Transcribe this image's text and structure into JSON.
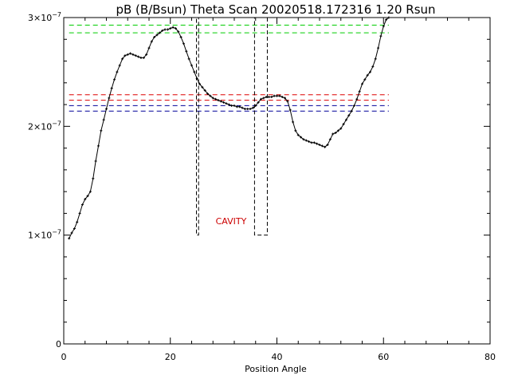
{
  "chart_data": {
    "type": "scatter",
    "title": "pB (B/Bsun) Theta Scan 20020518.172316 1.20 Rsun",
    "xlabel": "Position Angle",
    "ylabel": "",
    "xlim": [
      0,
      80
    ],
    "ylim": [
      0,
      3e-07
    ],
    "grid": false,
    "x_ticks": [
      {
        "value": 0,
        "label": "0"
      },
      {
        "value": 20,
        "label": "20"
      },
      {
        "value": 40,
        "label": "40"
      },
      {
        "value": 60,
        "label": "60"
      },
      {
        "value": 80,
        "label": "80"
      }
    ],
    "y_ticks": [
      {
        "value": 0,
        "label": "0",
        "exp": ""
      },
      {
        "value": 1e-07,
        "label": "1×10",
        "exp": "−7"
      },
      {
        "value": 2e-07,
        "label": "2×10",
        "exp": "−7"
      },
      {
        "value": 3e-07,
        "label": "3×10",
        "exp": "−7"
      }
    ],
    "series": [
      {
        "style": "points-with-line",
        "color": "#000000",
        "x": [
          1.0,
          1.5,
          2.0,
          2.5,
          3.0,
          3.5,
          4.0,
          4.5,
          5.0,
          5.5,
          6.0,
          6.5,
          7.0,
          7.5,
          8.0,
          8.5,
          9.0,
          9.5,
          10.0,
          10.5,
          11.0,
          11.5,
          12.0,
          12.5,
          13.0,
          13.5,
          14.0,
          14.5,
          15.0,
          15.5,
          16.0,
          16.5,
          17.0,
          17.5,
          18.0,
          18.5,
          19.0,
          19.5,
          20.0,
          20.5,
          21.0,
          21.5,
          22.0,
          22.5,
          23.0,
          23.5,
          24.0,
          24.5,
          25.0,
          25.5,
          26.0,
          26.5,
          27.0,
          27.5,
          28.0,
          28.5,
          29.0,
          29.5,
          30.0,
          30.5,
          31.0,
          31.5,
          32.0,
          32.5,
          33.0,
          33.5,
          34.0,
          34.5,
          35.0,
          35.5,
          36.0,
          36.5,
          37.0,
          37.5,
          38.0,
          38.5,
          39.0,
          39.5,
          40.0,
          40.5,
          41.0,
          41.5,
          42.0,
          42.5,
          43.0,
          43.5,
          44.0,
          44.5,
          45.0,
          45.5,
          46.0,
          46.5,
          47.0,
          47.5,
          48.0,
          48.5,
          49.0,
          49.5,
          50.0,
          50.5,
          51.0,
          51.5,
          52.0,
          52.5,
          53.0,
          53.5,
          54.0,
          54.5,
          55.0,
          55.5,
          56.0,
          56.5,
          57.0,
          57.5,
          58.0,
          58.5,
          59.0,
          59.5,
          60.0,
          60.5,
          61.0
        ],
        "y": [
          9.7e-08,
          1.02e-07,
          1.06e-07,
          1.12e-07,
          1.2e-07,
          1.28e-07,
          1.33e-07,
          1.36e-07,
          1.4e-07,
          1.52e-07,
          1.68e-07,
          1.82e-07,
          1.96e-07,
          2.06e-07,
          2.16e-07,
          2.26e-07,
          2.35e-07,
          2.43e-07,
          2.5e-07,
          2.56e-07,
          2.62e-07,
          2.65e-07,
          2.66e-07,
          2.67e-07,
          2.66e-07,
          2.65e-07,
          2.64e-07,
          2.63e-07,
          2.63e-07,
          2.66e-07,
          2.72e-07,
          2.78e-07,
          2.82e-07,
          2.84e-07,
          2.86e-07,
          2.88e-07,
          2.89e-07,
          2.89e-07,
          2.9e-07,
          2.91e-07,
          2.9e-07,
          2.87e-07,
          2.82e-07,
          2.76e-07,
          2.69e-07,
          2.62e-07,
          2.56e-07,
          2.5e-07,
          2.44e-07,
          2.39e-07,
          2.36e-07,
          2.33e-07,
          2.3e-07,
          2.28e-07,
          2.26e-07,
          2.25e-07,
          2.24e-07,
          2.23e-07,
          2.22e-07,
          2.21e-07,
          2.2e-07,
          2.19e-07,
          2.19e-07,
          2.18e-07,
          2.18e-07,
          2.17e-07,
          2.16e-07,
          2.16e-07,
          2.16e-07,
          2.17e-07,
          2.19e-07,
          2.22e-07,
          2.25e-07,
          2.26e-07,
          2.27e-07,
          2.27e-07,
          2.27e-07,
          2.28e-07,
          2.28e-07,
          2.28e-07,
          2.27e-07,
          2.26e-07,
          2.23e-07,
          2.15e-07,
          2.04e-07,
          1.96e-07,
          1.92e-07,
          1.9e-07,
          1.88e-07,
          1.87e-07,
          1.86e-07,
          1.85e-07,
          1.85e-07,
          1.84e-07,
          1.83e-07,
          1.82e-07,
          1.81e-07,
          1.83e-07,
          1.88e-07,
          1.93e-07,
          1.94e-07,
          1.96e-07,
          1.98e-07,
          2.02e-07,
          2.06e-07,
          2.1e-07,
          2.14e-07,
          2.19e-07,
          2.25e-07,
          2.32e-07,
          2.39e-07,
          2.43e-07,
          2.47e-07,
          2.5e-07,
          2.55e-07,
          2.62e-07,
          2.72e-07,
          2.83e-07,
          2.92e-07,
          2.98e-07,
          3e-07
        ]
      }
    ],
    "reference_lines": [
      {
        "y": 2.93e-07,
        "x_range": [
          1,
          61
        ],
        "color": "#00cc00",
        "dash": "dashed"
      },
      {
        "y": 2.86e-07,
        "x_range": [
          1,
          61
        ],
        "color": "#00cc00",
        "dash": "dashed"
      },
      {
        "y": 2.29e-07,
        "x_range": [
          1,
          61
        ],
        "color": "#dd0000",
        "dash": "dashed"
      },
      {
        "y": 2.24e-07,
        "x_range": [
          1,
          61
        ],
        "color": "#dd0000",
        "dash": "dashed"
      },
      {
        "y": 2.19e-07,
        "x_range": [
          1,
          61
        ],
        "color": "#000099",
        "dash": "dashed"
      },
      {
        "y": 2.14e-07,
        "x_range": [
          1,
          61
        ],
        "color": "#000099",
        "dash": "dashed"
      }
    ],
    "marker_boxes": [
      {
        "x0": 24.9,
        "x1": 25.3,
        "y0": 1e-07,
        "y1": 3e-07,
        "color": "#000000",
        "dash": "dashed"
      },
      {
        "x0": 35.8,
        "x1": 38.2,
        "y0": 1e-07,
        "y1": 3e-07,
        "color": "#000000",
        "dash": "dashed"
      }
    ],
    "annotations": [
      {
        "text": "CAVITY",
        "x": 28.5,
        "y": 1.1e-07,
        "color": "#cc0000"
      }
    ]
  }
}
